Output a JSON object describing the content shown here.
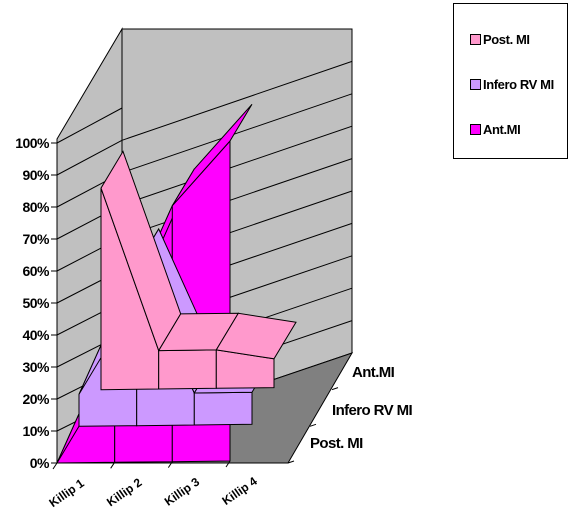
{
  "chart_data": {
    "type": "3d-area",
    "categories": [
      "Killip 1",
      "Killip 2",
      "Killip 3",
      "Killip 4"
    ],
    "series": [
      {
        "name": "Post. MI",
        "values": [
          63,
          12,
          12,
          9
        ],
        "color": "#ff99cc"
      },
      {
        "name": "Infero RV MI",
        "values": [
          10,
          50,
          10,
          10
        ],
        "color": "#cc99ff"
      },
      {
        "name": "Ant.MI",
        "values": [
          0,
          40,
          80,
          100
        ],
        "color": "#ff00ff"
      }
    ],
    "y_ticks": [
      "0%",
      "10%",
      "20%",
      "30%",
      "40%",
      "50%",
      "60%",
      "70%",
      "80%",
      "90%",
      "100%"
    ],
    "ylim": [
      0,
      100
    ],
    "wall_color": "#c0c0c0",
    "floor_color": "#808080",
    "legend_position": "top-right",
    "grid": true
  }
}
